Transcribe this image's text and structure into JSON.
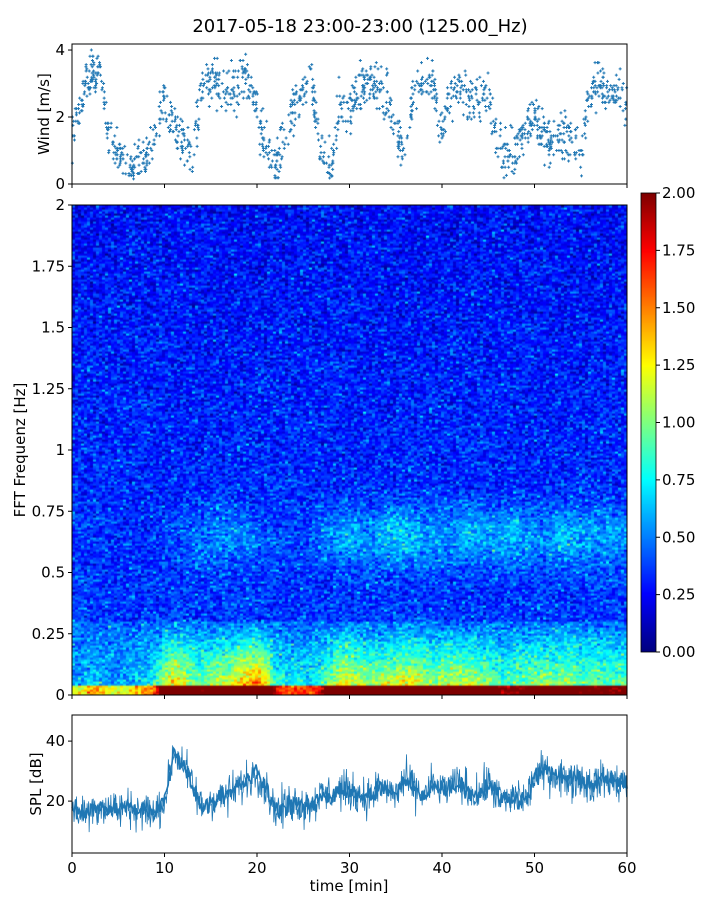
{
  "title": "2017-05-18 23:00-23:00 (125.00_Hz)",
  "chart_data": [
    {
      "type": "scatter",
      "name": "wind",
      "ylabel": "Wind [m/s]",
      "xlabel": "",
      "xlim": [
        0,
        60
      ],
      "ylim": [
        0,
        4.18
      ],
      "yticks": [
        "0",
        "2",
        "4"
      ],
      "ytick_values": [
        0,
        2,
        4
      ],
      "color": "#1f77b4",
      "marker": "+",
      "minutes": [
        0,
        1,
        2,
        3,
        4,
        5,
        6,
        7,
        8,
        9,
        10,
        11,
        12,
        13,
        14,
        15,
        16,
        17,
        18,
        19,
        20,
        21,
        22,
        23,
        24,
        25,
        26,
        27,
        28,
        29,
        30,
        31,
        32,
        33,
        34,
        35,
        36,
        37,
        38,
        39,
        40,
        41,
        42,
        43,
        44,
        45,
        46,
        47,
        48,
        49,
        50,
        51,
        52,
        53,
        54,
        55,
        56,
        57,
        58,
        59
      ],
      "wind_mean": [
        1.5,
        2.5,
        3.3,
        3.3,
        1.5,
        0.8,
        0.6,
        0.5,
        0.8,
        1.5,
        2.5,
        1.8,
        1.2,
        0.8,
        2.8,
        3.1,
        2.9,
        2.8,
        2.8,
        3.3,
        2.2,
        1.0,
        0.7,
        1.5,
        2.3,
        2.7,
        2.9,
        0.8,
        0.5,
        2.5,
        2.2,
        2.9,
        3.0,
        2.9,
        2.7,
        1.5,
        1.0,
        2.7,
        3.1,
        3.0,
        1.5,
        2.8,
        2.9,
        2.3,
        2.5,
        2.8,
        1.3,
        0.9,
        1.0,
        1.5,
        2.2,
        1.5,
        1.2,
        1.5,
        1.2,
        0.8,
        2.8,
        3.0,
        2.7,
        2.6
      ]
    },
    {
      "type": "heatmap",
      "name": "spectrogram",
      "ylabel": "FFT Frequenz [Hz]",
      "xlim": [
        0,
        60
      ],
      "ylim": [
        0,
        2
      ],
      "yticks": [
        "0",
        "0.25",
        "0.5",
        "0.75",
        "1",
        "1.25",
        "1.5",
        "1.75",
        "2"
      ],
      "ytick_values": [
        0,
        0.25,
        0.5,
        0.75,
        1,
        1.25,
        1.5,
        1.75,
        2
      ],
      "colormap": "jet",
      "clim": [
        0,
        2
      ],
      "colorbar_ticks": [
        "0.00",
        "0.25",
        "0.50",
        "0.75",
        "1.00",
        "1.25",
        "1.50",
        "1.75",
        "2.00"
      ],
      "colorbar_tick_values": [
        0,
        0.25,
        0.5,
        0.75,
        1,
        1.25,
        1.5,
        1.75,
        2
      ],
      "background_level": 0.22,
      "lowfreq_energy_by_minute": [
        0.5,
        0.5,
        0.6,
        0.6,
        0.5,
        0.5,
        0.5,
        0.6,
        0.6,
        0.7,
        1.1,
        1.3,
        1.2,
        1.0,
        0.9,
        1.0,
        1.1,
        1.1,
        1.3,
        1.4,
        1.5,
        1.3,
        0.8,
        0.7,
        0.7,
        0.7,
        0.7,
        0.8,
        1.0,
        1.2,
        1.2,
        1.1,
        1.0,
        1.0,
        1.1,
        1.1,
        1.2,
        1.2,
        1.1,
        1.0,
        1.1,
        1.1,
        1.1,
        1.1,
        1.0,
        1.0,
        0.9,
        0.8,
        0.9,
        0.9,
        1.0,
        1.0,
        1.0,
        1.0,
        1.0,
        0.9,
        0.9,
        0.9,
        0.9,
        0.9
      ],
      "midband_energy_by_minute": [
        0.3,
        0.3,
        0.3,
        0.3,
        0.3,
        0.3,
        0.3,
        0.3,
        0.3,
        0.3,
        0.35,
        0.35,
        0.4,
        0.4,
        0.45,
        0.45,
        0.5,
        0.5,
        0.45,
        0.45,
        0.4,
        0.35,
        0.35,
        0.35,
        0.35,
        0.35,
        0.4,
        0.45,
        0.5,
        0.55,
        0.6,
        0.55,
        0.5,
        0.55,
        0.6,
        0.65,
        0.65,
        0.6,
        0.55,
        0.55,
        0.5,
        0.5,
        0.55,
        0.6,
        0.6,
        0.55,
        0.55,
        0.6,
        0.65,
        0.55,
        0.5,
        0.5,
        0.55,
        0.6,
        0.6,
        0.55,
        0.55,
        0.55,
        0.55,
        0.5
      ]
    },
    {
      "type": "line",
      "name": "spl",
      "ylabel": "SPL [dB]",
      "xlabel": "time [min]",
      "xlim": [
        0,
        60
      ],
      "ylim": [
        2.7,
        48.7
      ],
      "yticks": [
        "20",
        "40"
      ],
      "ytick_values": [
        20,
        40
      ],
      "xticks": [
        "0",
        "10",
        "20",
        "30",
        "40",
        "50",
        "60"
      ],
      "xtick_values": [
        0,
        10,
        20,
        30,
        40,
        50,
        60
      ],
      "color": "#1f77b4",
      "minutes": [
        0,
        1,
        2,
        3,
        4,
        5,
        6,
        7,
        8,
        9,
        10,
        11,
        12,
        13,
        14,
        15,
        16,
        17,
        18,
        19,
        20,
        21,
        22,
        23,
        24,
        25,
        26,
        27,
        28,
        29,
        30,
        31,
        32,
        33,
        34,
        35,
        36,
        37,
        38,
        39,
        40,
        41,
        42,
        43,
        44,
        45,
        46,
        47,
        48,
        49,
        50,
        51,
        52,
        53,
        54,
        55,
        56,
        57,
        58,
        59,
        60
      ],
      "spl_db": [
        17,
        16,
        17,
        18,
        18,
        17,
        18,
        17,
        17,
        16,
        20,
        36,
        33,
        25,
        18,
        20,
        21,
        22,
        25,
        27,
        30,
        24,
        17,
        18,
        20,
        18,
        19,
        22,
        22,
        24,
        23,
        22,
        21,
        24,
        24,
        22,
        27,
        24,
        22,
        25,
        24,
        25,
        26,
        23,
        22,
        26,
        22,
        20,
        22,
        20,
        28,
        30,
        29,
        28,
        27,
        28,
        25,
        27,
        27,
        26,
        26
      ]
    }
  ]
}
